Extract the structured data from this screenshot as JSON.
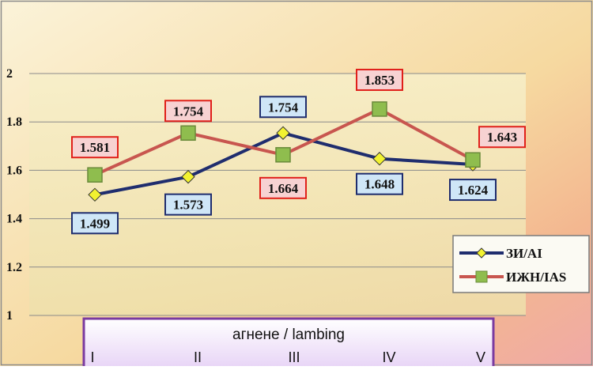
{
  "chart_data": {
    "type": "line",
    "title": "",
    "xlabel": "агнене / lambing",
    "ylabel": "",
    "categories": [
      "I",
      "II",
      "III",
      "IV",
      "V"
    ],
    "ylim": [
      1,
      2
    ],
    "yticks": [
      "1",
      "1.2",
      "1.4",
      "1.6",
      "1.8",
      "2"
    ],
    "grid": true,
    "legend_position": "right",
    "series": [
      {
        "name": "ЗИ/AI",
        "values": [
          1.499,
          1.573,
          1.754,
          1.648,
          1.624
        ],
        "labels": [
          "1.499",
          "1.573",
          "1.754",
          "1.648",
          "1.624"
        ],
        "color": "#1f2d6e",
        "marker": "diamond",
        "marker_color": "#f2f230",
        "label_bg": "#cfe6f7",
        "label_border": "#1f2d6e"
      },
      {
        "name": "ИЖН/IAS",
        "values": [
          1.581,
          1.754,
          1.664,
          1.853,
          1.643
        ],
        "labels": [
          "1.581",
          "1.754",
          "1.664",
          "1.853",
          "1.643"
        ],
        "color": "#c8564f",
        "marker": "square",
        "marker_color": "#8fbd4e",
        "label_bg": "#f7d2d2",
        "label_border": "#e0201a"
      }
    ]
  }
}
